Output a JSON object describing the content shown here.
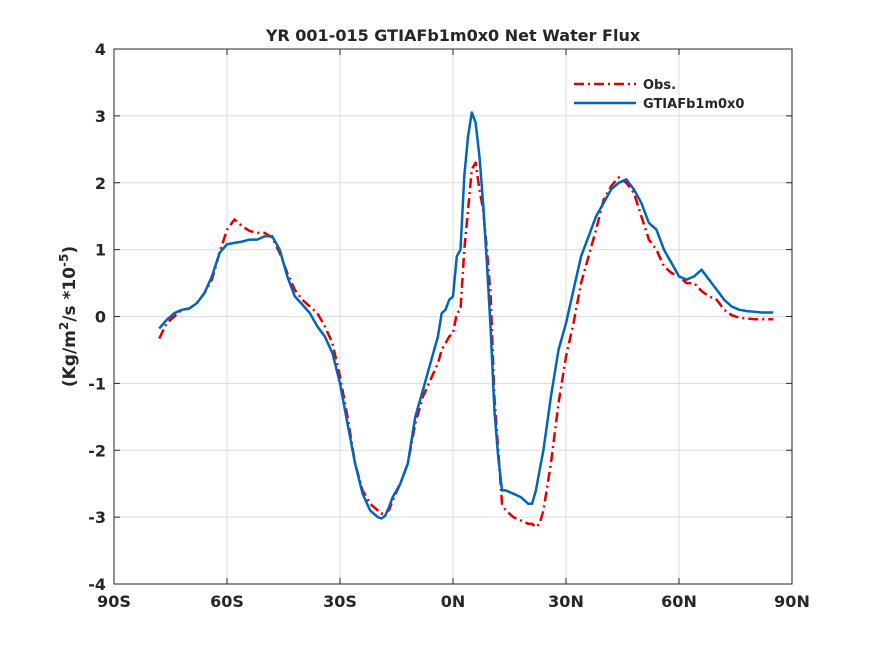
{
  "chart_data": {
    "type": "line",
    "title": "YR 001-015 GTIAFb1m0x0  Net Water Flux",
    "xlabel": "",
    "ylabel": {
      "text_1": "(Kg/m",
      "sup_1": "2",
      "text_2": "/s *10",
      "sup_2": "-5",
      "text_3": ")"
    },
    "xlim": [
      -90,
      90
    ],
    "ylim": [
      -4,
      4
    ],
    "xticks": [
      -90,
      -60,
      -30,
      0,
      30,
      60,
      90
    ],
    "xtick_labels": [
      "90S",
      "60S",
      "30S",
      "0N",
      "30N",
      "60N",
      "90N"
    ],
    "yticks": [
      -4,
      -3,
      -2,
      -1,
      0,
      1,
      2,
      3,
      4
    ],
    "ytick_labels": [
      "-4",
      "-3",
      "-2",
      "-1",
      "0",
      "1",
      "2",
      "3",
      "4"
    ],
    "grid": true,
    "legend_position": "top-right",
    "series": [
      {
        "name": "Obs.",
        "color": "#e00000",
        "style": "dash-dot",
        "x": [
          -78,
          -76,
          -74,
          -72,
          -70,
          -68,
          -66,
          -64,
          -62,
          -60,
          -58,
          -56,
          -54,
          -52,
          -50,
          -48,
          -46,
          -44,
          -42,
          -40,
          -38,
          -36,
          -34,
          -32,
          -30,
          -28,
          -26,
          -24,
          -22,
          -20,
          -19,
          -18,
          -17,
          -16,
          -14,
          -12,
          -10,
          -8,
          -6,
          -4,
          -3,
          -2,
          -1,
          0,
          1,
          2,
          3,
          4,
          5,
          6,
          7,
          8,
          9,
          10,
          11,
          12,
          13,
          14,
          16,
          18,
          20,
          21,
          22,
          23,
          24,
          26,
          28,
          30,
          32,
          34,
          36,
          38,
          40,
          42,
          44,
          46,
          48,
          50,
          52,
          54,
          56,
          58,
          60,
          62,
          64,
          66,
          68,
          70,
          72,
          74,
          76,
          78,
          80,
          82,
          85
        ],
        "y": [
          -0.33,
          -0.1,
          0.0,
          0.1,
          0.12,
          0.2,
          0.35,
          0.55,
          0.95,
          1.3,
          1.45,
          1.35,
          1.28,
          1.25,
          1.25,
          1.18,
          0.95,
          0.65,
          0.4,
          0.25,
          0.15,
          0.05,
          -0.15,
          -0.4,
          -0.9,
          -1.5,
          -2.2,
          -2.6,
          -2.8,
          -2.9,
          -2.95,
          -2.92,
          -2.9,
          -2.75,
          -2.5,
          -2.2,
          -1.6,
          -1.2,
          -0.95,
          -0.7,
          -0.5,
          -0.4,
          -0.3,
          -0.25,
          0.05,
          0.1,
          1.0,
          1.6,
          2.2,
          2.3,
          1.9,
          1.6,
          1.0,
          0.3,
          -1.2,
          -2.0,
          -2.8,
          -2.9,
          -3.0,
          -3.05,
          -3.1,
          -3.1,
          -3.15,
          -3.1,
          -2.9,
          -2.2,
          -1.3,
          -0.6,
          -0.1,
          0.5,
          0.9,
          1.3,
          1.75,
          1.95,
          2.08,
          2.0,
          1.85,
          1.5,
          1.15,
          1.0,
          0.75,
          0.65,
          0.6,
          0.5,
          0.5,
          0.38,
          0.3,
          0.25,
          0.1,
          0.02,
          -0.02,
          -0.03,
          -0.04,
          -0.04,
          -0.04
        ]
      },
      {
        "name": "GTIAFb1m0x0",
        "color": "#0066b8",
        "style": "solid",
        "x": [
          -78,
          -76,
          -74,
          -72,
          -70,
          -68,
          -66,
          -64,
          -62,
          -60,
          -58,
          -56,
          -54,
          -52,
          -50,
          -48,
          -46,
          -44,
          -42,
          -40,
          -38,
          -36,
          -34,
          -32,
          -30,
          -28,
          -26,
          -24,
          -22,
          -20,
          -19,
          -18,
          -17,
          -16,
          -14,
          -12,
          -10,
          -8,
          -6,
          -4,
          -3,
          -2,
          -1,
          0,
          1,
          2,
          3,
          4,
          5,
          6,
          7,
          8,
          9,
          10,
          11,
          12,
          13,
          14,
          16,
          18,
          20,
          21,
          22,
          23,
          24,
          26,
          28,
          30,
          32,
          34,
          36,
          38,
          40,
          42,
          44,
          46,
          48,
          50,
          52,
          54,
          56,
          58,
          60,
          62,
          64,
          66,
          68,
          70,
          72,
          74,
          76,
          78,
          80,
          82,
          85
        ],
        "y": [
          -0.18,
          -0.05,
          0.05,
          0.1,
          0.12,
          0.2,
          0.35,
          0.6,
          0.95,
          1.08,
          1.1,
          1.12,
          1.15,
          1.15,
          1.2,
          1.2,
          1.0,
          0.6,
          0.3,
          0.18,
          0.05,
          -0.15,
          -0.3,
          -0.55,
          -1.0,
          -1.6,
          -2.2,
          -2.65,
          -2.9,
          -3.0,
          -3.02,
          -2.98,
          -2.85,
          -2.7,
          -2.5,
          -2.2,
          -1.5,
          -1.1,
          -0.7,
          -0.3,
          0.05,
          0.1,
          0.25,
          0.3,
          0.9,
          1.0,
          2.1,
          2.7,
          3.05,
          2.9,
          2.4,
          1.7,
          0.8,
          -0.2,
          -1.4,
          -2.1,
          -2.6,
          -2.6,
          -2.65,
          -2.7,
          -2.8,
          -2.8,
          -2.6,
          -2.3,
          -2.0,
          -1.2,
          -0.5,
          -0.1,
          0.4,
          0.9,
          1.2,
          1.5,
          1.7,
          1.9,
          2.0,
          2.05,
          1.9,
          1.7,
          1.4,
          1.3,
          1.0,
          0.8,
          0.6,
          0.55,
          0.6,
          0.7,
          0.55,
          0.4,
          0.25,
          0.15,
          0.1,
          0.08,
          0.07,
          0.06,
          0.06
        ]
      }
    ]
  }
}
